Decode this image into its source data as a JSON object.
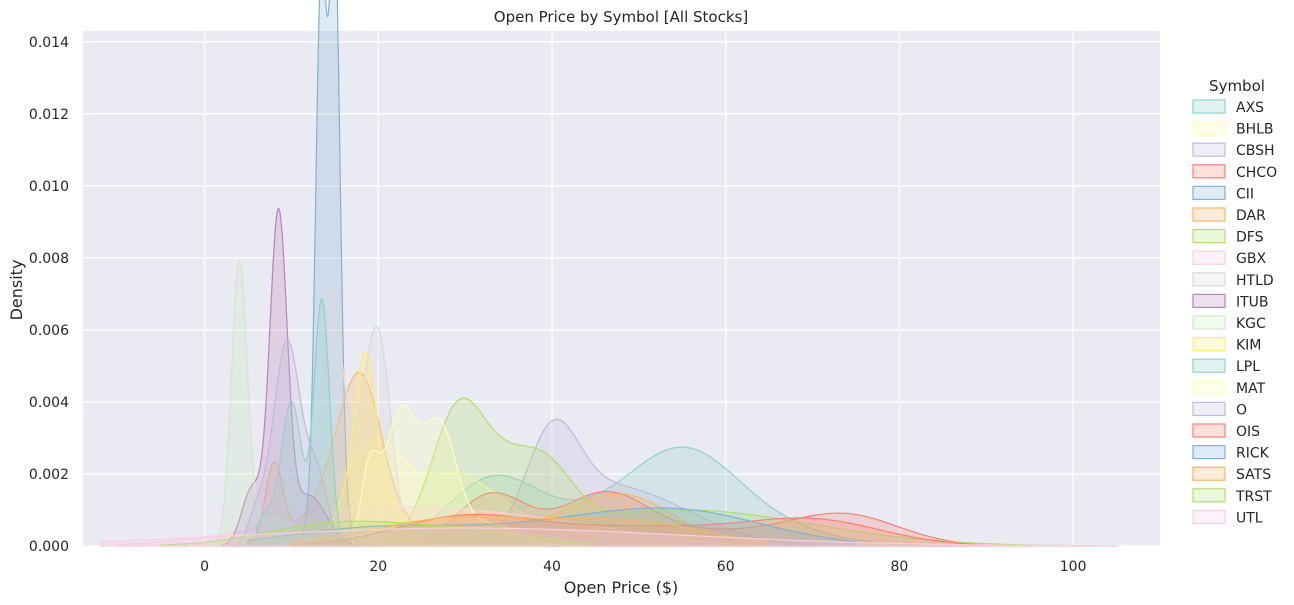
{
  "chart_data": {
    "type": "area",
    "title": "Open Price by Symbol [All Stocks]",
    "xlabel": "Open Price ($)",
    "ylabel": "Density",
    "xlim": [
      -14,
      110
    ],
    "ylim": [
      0,
      0.0143
    ],
    "xticks": [
      0,
      20,
      40,
      60,
      80,
      100
    ],
    "yticks": [
      0,
      0.002,
      0.004,
      0.006,
      0.008,
      0.01,
      0.012,
      0.014
    ],
    "ytick_labels": [
      "0.000",
      "0.002",
      "0.004",
      "0.006",
      "0.008",
      "0.010",
      "0.012",
      "0.014"
    ],
    "grid": true,
    "legend": {
      "title": "Symbol",
      "placement": "right"
    },
    "series": [
      {
        "name": "AXS",
        "color": "#8dd3c7",
        "range": [
          13,
          88
        ],
        "peaks": [
          [
            55,
            6,
            0.0019
          ],
          [
            33,
            5,
            0.0015
          ],
          [
            44,
            10,
            0.0008
          ],
          [
            62,
            8,
            0.0006
          ]
        ]
      },
      {
        "name": "BHLB",
        "color": "#ffffb3",
        "range": [
          8,
          45
        ],
        "peaks": [
          [
            20,
            3,
            0.0025
          ],
          [
            28,
            4,
            0.0018
          ],
          [
            15,
            3,
            0.001
          ],
          [
            35,
            4,
            0.0008
          ]
        ]
      },
      {
        "name": "CBSH",
        "color": "#bebada",
        "range": [
          30,
          70
        ],
        "peaks": [
          [
            40,
            3,
            0.0026
          ],
          [
            46,
            6,
            0.0014
          ],
          [
            55,
            6,
            0.0006
          ]
        ]
      },
      {
        "name": "CHCO",
        "color": "#fb8072",
        "range": [
          12,
          90
        ],
        "peaks": [
          [
            33,
            4,
            0.0014
          ],
          [
            46,
            5,
            0.0013
          ],
          [
            74,
            6,
            0.0007
          ],
          [
            60,
            12,
            0.0004
          ]
        ]
      },
      {
        "name": "CII",
        "color": "#80b1d3",
        "range": [
          9,
          18
        ],
        "peaks": [
          [
            13.4,
            0.6,
            0.0125
          ],
          [
            15,
            0.6,
            0.0136
          ],
          [
            14.2,
            1.3,
            0.004
          ]
        ]
      },
      {
        "name": "DAR",
        "color": "#fdb462",
        "range": [
          3,
          62
        ],
        "peaks": [
          [
            8,
            1,
            0.0022
          ],
          [
            18,
            2.5,
            0.0042
          ],
          [
            48,
            6,
            0.0014
          ],
          [
            14,
            3,
            0.001
          ],
          [
            30,
            8,
            0.0006
          ]
        ]
      },
      {
        "name": "DFS",
        "color": "#b3de69",
        "range": [
          13,
          103
        ],
        "peaks": [
          [
            29,
            3,
            0.0032
          ],
          [
            35,
            4,
            0.0018
          ],
          [
            55,
            15,
            0.001
          ],
          [
            40,
            3,
            0.001
          ]
        ]
      },
      {
        "name": "GBX",
        "color": "#fccde5",
        "range": [
          -10,
          60
        ],
        "peaks": [
          [
            20,
            12,
            0.001
          ],
          [
            40,
            10,
            0.0005
          ]
        ]
      },
      {
        "name": "HTLD",
        "color": "#d9d9d9",
        "range": [
          10,
          30
        ],
        "peaks": [
          [
            14.5,
            1.2,
            0.0062
          ],
          [
            20,
            1.5,
            0.0054
          ],
          [
            17,
            2,
            0.002
          ]
        ]
      },
      {
        "name": "ITUB",
        "color": "#bc80bd",
        "range": [
          2,
          18
        ],
        "peaks": [
          [
            8.5,
            1,
            0.009
          ],
          [
            5.5,
            1.2,
            0.0016
          ],
          [
            12,
            2,
            0.0014
          ]
        ]
      },
      {
        "name": "KGC",
        "color": "#ccebc5",
        "range": [
          0,
          16
        ],
        "peaks": [
          [
            4,
            0.9,
            0.0077
          ],
          [
            8,
            2.5,
            0.0008
          ]
        ]
      },
      {
        "name": "KIM",
        "color": "#ffed6f",
        "range": [
          12,
          30
        ],
        "peaks": [
          [
            18.5,
            1.2,
            0.0046
          ],
          [
            21,
            2,
            0.0012
          ],
          [
            16,
            1.5,
            0.001
          ]
        ]
      },
      {
        "name": "LPL",
        "color": "#8dd3c7",
        "range": [
          6,
          20
        ],
        "peaks": [
          [
            13.5,
            0.9,
            0.0068
          ],
          [
            10,
            1.2,
            0.004
          ],
          [
            7,
            1,
            0.0008
          ]
        ]
      },
      {
        "name": "MAT",
        "color": "#ffffb3",
        "range": [
          17,
          45
        ],
        "peaks": [
          [
            22.5,
            1.8,
            0.0036
          ],
          [
            27,
            2,
            0.0033
          ],
          [
            19,
            1,
            0.002
          ],
          [
            33,
            3,
            0.0006
          ]
        ]
      },
      {
        "name": "O",
        "color": "#bebada",
        "range": [
          3,
          17
        ],
        "peaks": [
          [
            9.5,
            1.6,
            0.0057
          ],
          [
            13,
            1.2,
            0.0018
          ],
          [
            6,
            1,
            0.0008
          ]
        ]
      },
      {
        "name": "OIS",
        "color": "#fb8072",
        "range": [
          10,
          95
        ],
        "peaks": [
          [
            30,
            8,
            0.0008
          ],
          [
            70,
            8,
            0.0007
          ],
          [
            50,
            10,
            0.0005
          ]
        ]
      },
      {
        "name": "RICK",
        "color": "#80b1d3",
        "range": [
          5,
          75
        ],
        "peaks": [
          [
            20,
            10,
            0.0005
          ],
          [
            55,
            10,
            0.0009
          ],
          [
            40,
            10,
            0.0004
          ]
        ]
      },
      {
        "name": "SATS",
        "color": "#fdb462",
        "range": [
          10,
          65
        ],
        "peaks": [
          [
            30,
            10,
            0.0008
          ],
          [
            50,
            8,
            0.0006
          ]
        ]
      },
      {
        "name": "TRST",
        "color": "#b3de69",
        "range": [
          -5,
          45
        ],
        "peaks": [
          [
            15,
            8,
            0.0006
          ],
          [
            30,
            8,
            0.0004
          ]
        ]
      },
      {
        "name": "UTL",
        "color": "#fccde5",
        "range": [
          -12,
          105
        ],
        "peaks": [
          [
            30,
            25,
            0.0005
          ]
        ]
      }
    ]
  }
}
